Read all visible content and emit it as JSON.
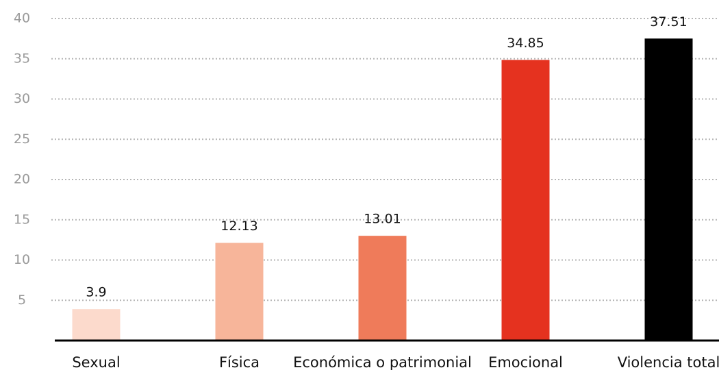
{
  "chart_data": {
    "type": "bar",
    "categories": [
      "Sexual",
      "Física",
      "Económica o patrimonial",
      "Emocional",
      "Violencia total"
    ],
    "values": [
      3.9,
      12.13,
      13.01,
      34.85,
      37.51
    ],
    "colors": [
      "#fcdacc",
      "#f7b59a",
      "#ef7b5a",
      "#e5321f",
      "#000000"
    ],
    "ylim": [
      0,
      40
    ],
    "yticks": [
      5,
      10,
      15,
      20,
      25,
      30,
      35,
      40
    ],
    "grid": true
  }
}
